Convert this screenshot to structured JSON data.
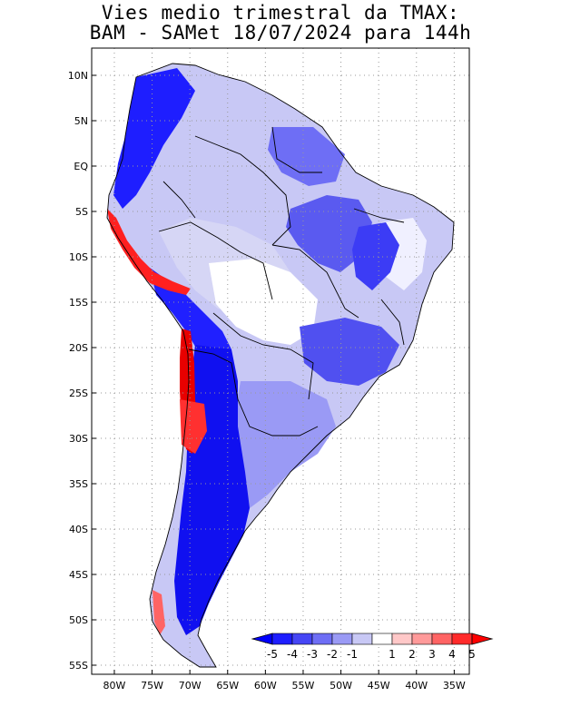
{
  "title": {
    "line1": "Vies medio trimestral da TMAX:",
    "line2": "BAM - SAMet 18/07/2024  para 144h"
  },
  "axes": {
    "lat_labels": [
      "10N",
      "5N",
      "EQ",
      "5S",
      "10S",
      "15S",
      "20S",
      "25S",
      "30S",
      "35S",
      "40S",
      "45S",
      "50S",
      "55S"
    ],
    "lat_values": [
      10,
      5,
      0,
      -5,
      -10,
      -15,
      -20,
      -25,
      -30,
      -35,
      -40,
      -45,
      -50,
      -55
    ],
    "lon_labels": [
      "80W",
      "75W",
      "70W",
      "65W",
      "60W",
      "55W",
      "50W",
      "45W",
      "40W",
      "35W"
    ],
    "lon_values": [
      -80,
      -75,
      -70,
      -65,
      -60,
      -55,
      -50,
      -45,
      -40,
      -35
    ],
    "lon_range": [
      -83,
      -33
    ],
    "lat_range": [
      -56,
      13
    ],
    "grid": "dotted"
  },
  "colorbar": {
    "labels": [
      "-5",
      "-4",
      "-3",
      "-2",
      "-1",
      "1",
      "2",
      "3",
      "4",
      "5"
    ],
    "colors": [
      "#1e1eff",
      "#4646f5",
      "#6e6ef5",
      "#9a9af5",
      "#c8c8f5",
      "#ffffff",
      "#ffc8c8",
      "#ff9a9a",
      "#ff6464",
      "#ff2a2a"
    ],
    "low_end_color": "#0000ff",
    "high_end_color": "#ff0000"
  },
  "regions": [
    {
      "name": "andes-north",
      "color": "#1e1eff"
    },
    {
      "name": "patagonia",
      "color": "#1010f0"
    },
    {
      "name": "chile-coast",
      "color": "#e00000"
    }
  ]
}
